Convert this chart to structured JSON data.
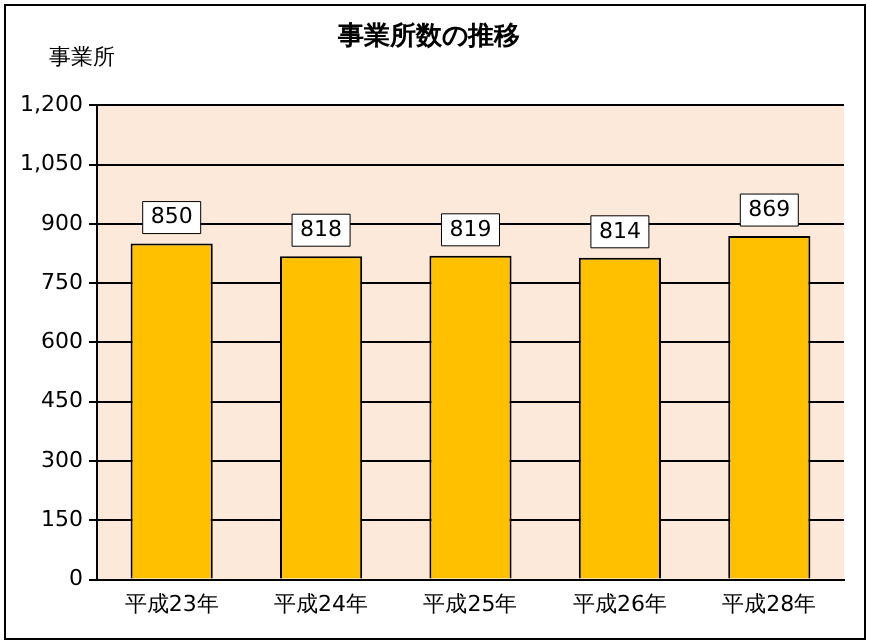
{
  "chart_data": {
    "type": "bar",
    "title": "事業所数の推移",
    "ylabel": "事業所",
    "categories": [
      "平成23年",
      "平成24年",
      "平成25年",
      "平成26年",
      "平成28年"
    ],
    "values": [
      850,
      818,
      819,
      814,
      869
    ],
    "color": "#ffc000",
    "ylim": [
      0,
      1200
    ],
    "yticks": [
      0,
      150,
      300,
      450,
      600,
      750,
      900,
      {
        "value": 1050,
        "label": "1,050"
      },
      {
        "value": 1200,
        "label": "1,200"
      }
    ],
    "grid": "y",
    "data_labels": true,
    "legend": false
  }
}
